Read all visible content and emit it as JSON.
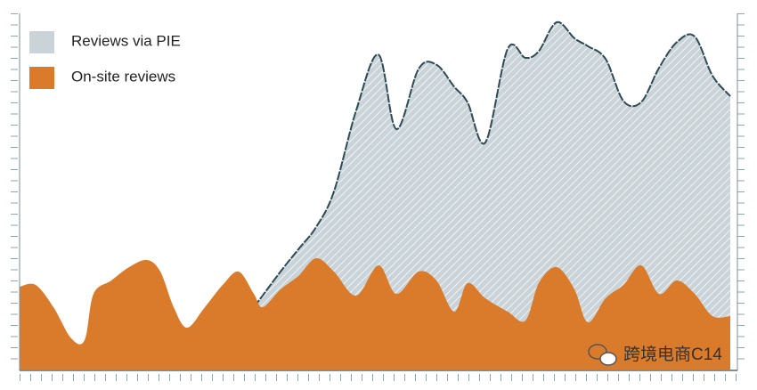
{
  "chart_data": {
    "type": "area",
    "x": [
      22,
      40,
      60,
      80,
      95,
      105,
      125,
      145,
      165,
      180,
      195,
      210,
      230,
      250,
      268,
      285,
      295,
      315,
      335,
      355,
      375,
      400,
      425,
      445,
      470,
      490,
      510,
      525,
      545,
      570,
      590,
      605,
      625,
      645,
      660,
      680,
      700,
      720,
      740,
      760,
      780,
      800,
      820
    ],
    "xlim": [
      22,
      820
    ],
    "ylim": [
      0,
      100
    ],
    "series": [
      {
        "name": "Reviews via PIE",
        "color": "#c9d3d8",
        "line_color": "#2e4a55",
        "hatched": true,
        "values": [
          null,
          null,
          null,
          null,
          null,
          null,
          null,
          null,
          null,
          null,
          null,
          null,
          null,
          null,
          null,
          17.5,
          20.8,
          27.5,
          33.75,
          40,
          50,
          72.8,
          88.4,
          67.5,
          84.4,
          85.6,
          79.4,
          75,
          63.75,
          90,
          87.5,
          89.4,
          97.5,
          93,
          90.8,
          87.2,
          75.4,
          75.1,
          84.7,
          91.9,
          93.5,
          82.5,
          76.75
        ]
      },
      {
        "name": "On-site reviews",
        "color": "#d97b2b",
        "values": [
          23.25,
          23.75,
          17.5,
          8.75,
          8.25,
          21.25,
          25,
          28.75,
          30.75,
          27.5,
          17.5,
          11.75,
          17.5,
          23.75,
          27.5,
          21.25,
          17.5,
          22.5,
          26.25,
          31.25,
          27.5,
          20.75,
          29.25,
          21.25,
          27.5,
          25,
          16.25,
          24.25,
          20,
          16.25,
          13.75,
          24.25,
          28.75,
          22.5,
          13.25,
          20,
          23.75,
          29.25,
          21.25,
          25,
          21.25,
          15,
          15
        ]
      }
    ],
    "legend": "top-left",
    "watermark": "跨境电商C14"
  }
}
